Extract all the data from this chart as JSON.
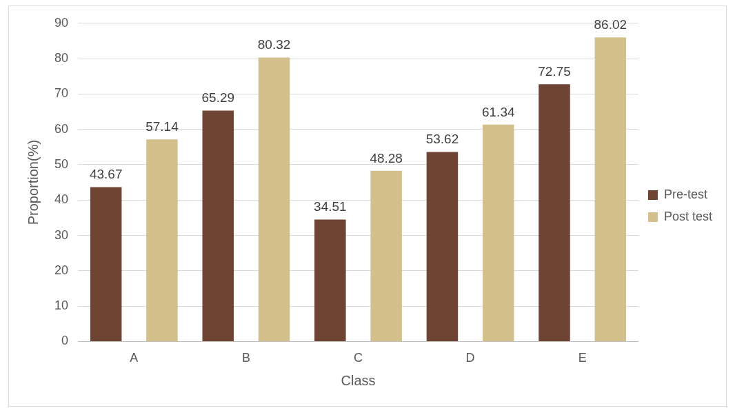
{
  "chart_data": {
    "type": "bar",
    "xlabel": "Class",
    "ylabel": "Proportion(%)",
    "categories": [
      "A",
      "B",
      "C",
      "D",
      "E"
    ],
    "series": [
      {
        "name": "Pre-test",
        "color": "#6e4535",
        "values": [
          43.67,
          65.29,
          34.51,
          53.62,
          72.75
        ]
      },
      {
        "name": "Post test",
        "color": "#d4c08c",
        "values": [
          57.14,
          80.32,
          48.28,
          61.34,
          86.02
        ]
      }
    ],
    "ylim": [
      0,
      90
    ],
    "yticks": [
      0,
      10,
      20,
      30,
      40,
      50,
      60,
      70,
      80,
      90
    ],
    "grid": "y",
    "legend": "right",
    "data_labels": true
  }
}
